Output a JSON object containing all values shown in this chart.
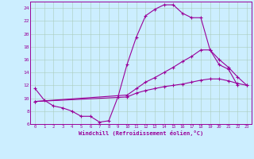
{
  "xlabel": "Windchill (Refroidissement éolien,°C)",
  "bg_color": "#cceeff",
  "line_color": "#990099",
  "grid_color": "#aaccbb",
  "xmin": -0.5,
  "xmax": 23.5,
  "ymin": 6,
  "ymax": 25,
  "yticks": [
    6,
    8,
    10,
    12,
    14,
    16,
    18,
    20,
    22,
    24
  ],
  "xticks": [
    0,
    1,
    2,
    3,
    4,
    5,
    6,
    7,
    8,
    9,
    10,
    11,
    12,
    13,
    14,
    15,
    16,
    17,
    18,
    19,
    20,
    21,
    22,
    23
  ],
  "line1_x": [
    0,
    1,
    2,
    3,
    4,
    5,
    6,
    7,
    8,
    9,
    10,
    11,
    12,
    13,
    14,
    15,
    16,
    17,
    18,
    19,
    20,
    21,
    22
  ],
  "line1_y": [
    11.5,
    9.7,
    8.8,
    8.5,
    8.0,
    7.2,
    7.2,
    6.3,
    6.5,
    10.2,
    15.3,
    19.5,
    22.8,
    23.8,
    24.5,
    24.5,
    23.2,
    22.5,
    22.5,
    17.5,
    15.2,
    14.5,
    12.0
  ],
  "line2_x": [
    0,
    10,
    11,
    12,
    13,
    14,
    15,
    16,
    17,
    18,
    19,
    20,
    21,
    22,
    23
  ],
  "line2_y": [
    9.5,
    10.5,
    11.5,
    12.5,
    13.2,
    14.0,
    14.8,
    15.7,
    16.5,
    17.5,
    17.5,
    16.0,
    14.8,
    13.3,
    12.0
  ],
  "line3_x": [
    0,
    10,
    11,
    12,
    13,
    14,
    15,
    16,
    17,
    18,
    19,
    20,
    21,
    22,
    23
  ],
  "line3_y": [
    9.5,
    10.2,
    10.8,
    11.2,
    11.5,
    11.8,
    12.0,
    12.2,
    12.5,
    12.8,
    13.0,
    13.0,
    12.7,
    12.3,
    12.0
  ]
}
